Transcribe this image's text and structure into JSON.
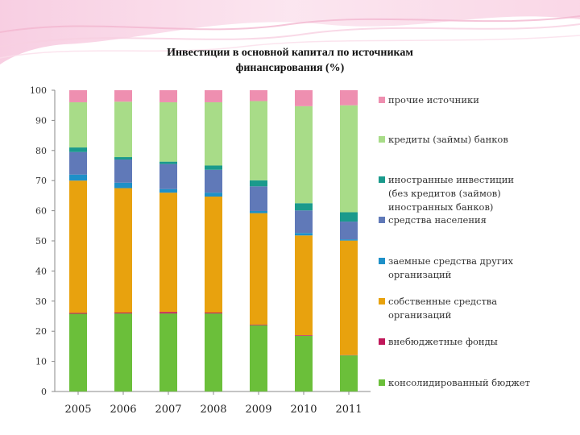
{
  "chart_data": {
    "type": "bar",
    "stacked": true,
    "title": "Инвестиции в основной капитал по источникам финансирования  (%)",
    "title_lines": [
      "Инвестиции в основной капитал по источникам",
      "финансирования  (%)"
    ],
    "categories": [
      "2005",
      "2006",
      "2007",
      "2008",
      "2009",
      "2010",
      "2011"
    ],
    "ylim": [
      0,
      100
    ],
    "yticks": [
      "0",
      "10",
      "20",
      "30",
      "40",
      "50",
      "60",
      "70",
      "80",
      "90",
      "100"
    ],
    "grid": false,
    "legend_position": "right",
    "series": [
      {
        "name": "консолидированный бюджет",
        "color": "#6BBF3A",
        "values": [
          25.8,
          25.9,
          25.9,
          25.9,
          22.0,
          18.5,
          12.0
        ]
      },
      {
        "name": "внебюджетные фонды",
        "color": "#C0185A",
        "values": [
          0.3,
          0.3,
          0.5,
          0.3,
          0.2,
          0.2,
          0.1
        ]
      },
      {
        "name": "собственные средства организаций",
        "color": "#E8A20E",
        "values": [
          43.9,
          41.3,
          39.6,
          38.5,
          37.0,
          33.1,
          38.0
        ]
      },
      {
        "name": "заемные средства других организаций",
        "color": "#1E90C8",
        "values": [
          2.0,
          1.8,
          1.2,
          1.3,
          0.7,
          0.8,
          0.4
        ]
      },
      {
        "name": "средства населения",
        "color": "#6079B8",
        "values": [
          7.5,
          7.7,
          8.3,
          7.6,
          8.2,
          7.5,
          5.9
        ]
      },
      {
        "name": "иностранные инвестиции (без кредитов (займов) иностранных банков)",
        "color": "#1A9A8C",
        "name_lines": [
          "иностранные инвестиции",
          "(без кредитов (займов)",
          "иностранных банков)"
        ],
        "values": [
          1.5,
          0.8,
          0.8,
          1.4,
          2.0,
          2.4,
          3.1
        ]
      },
      {
        "name": "кредиты (займы) банков",
        "color": "#A8DC88",
        "values": [
          15.0,
          18.4,
          19.7,
          21.0,
          26.3,
          32.2,
          35.5
        ]
      },
      {
        "name": "прочие источники",
        "color": "#EE8FB0",
        "values": [
          4.0,
          3.8,
          4.0,
          4.0,
          3.6,
          5.3,
          5.0
        ]
      }
    ]
  }
}
